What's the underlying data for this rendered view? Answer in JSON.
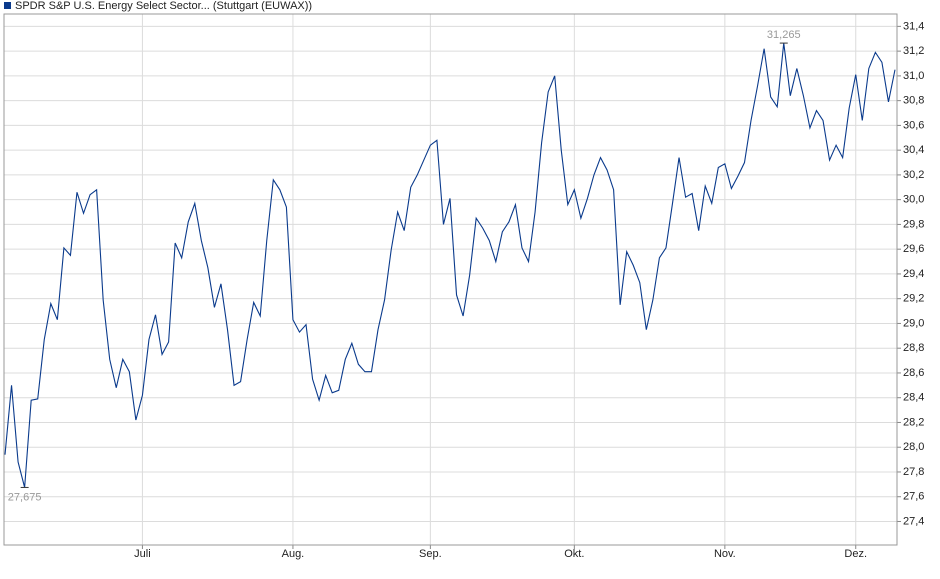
{
  "chart_data": {
    "type": "line",
    "categories": [
      null,
      null,
      null,
      null,
      null,
      null,
      null,
      null,
      null,
      null,
      null,
      null,
      null,
      null,
      null,
      null,
      null,
      null,
      null,
      null,
      null,
      "Juli",
      null,
      null,
      null,
      null,
      null,
      null,
      null,
      null,
      null,
      null,
      null,
      null,
      null,
      null,
      null,
      null,
      null,
      null,
      null,
      null,
      null,
      null,
      "Aug.",
      null,
      null,
      null,
      null,
      null,
      null,
      null,
      null,
      null,
      null,
      null,
      null,
      null,
      null,
      null,
      null,
      null,
      null,
      null,
      null,
      "Sep.",
      null,
      null,
      null,
      null,
      null,
      null,
      null,
      null,
      null,
      null,
      null,
      null,
      null,
      null,
      null,
      null,
      null,
      null,
      null,
      null,
      null,
      "Okt.",
      null,
      null,
      null,
      null,
      null,
      null,
      null,
      null,
      null,
      null,
      null,
      null,
      null,
      null,
      null,
      null,
      null,
      null,
      null,
      null,
      null,
      null,
      "Nov.",
      null,
      null,
      null,
      null,
      null,
      null,
      null,
      null,
      null,
      null,
      null,
      null,
      null,
      null,
      null,
      null,
      null,
      null,
      null,
      "Dez.",
      null,
      null,
      null,
      null,
      null,
      null
    ],
    "series": [
      {
        "name": "SPDR S&P U.S. Energy Select Sector... (Stuttgart (EUWAX))",
        "color": "#0a3a8c",
        "values": [
          27.94,
          28.5,
          27.88,
          27.675,
          28.38,
          28.39,
          28.87,
          29.16,
          29.03,
          29.61,
          29.55,
          30.06,
          29.89,
          30.04,
          30.08,
          29.19,
          28.71,
          28.48,
          28.71,
          28.61,
          28.22,
          28.42,
          28.87,
          29.07,
          28.75,
          28.85,
          29.65,
          29.53,
          29.82,
          29.97,
          29.67,
          29.45,
          29.13,
          29.32,
          28.95,
          28.5,
          28.53,
          28.87,
          29.17,
          29.06,
          29.67,
          30.16,
          30.08,
          29.94,
          29.03,
          28.93,
          28.99,
          28.55,
          28.38,
          28.58,
          28.44,
          28.46,
          28.71,
          28.84,
          28.67,
          28.61,
          28.61,
          28.95,
          29.19,
          29.59,
          29.9,
          29.75,
          30.1,
          30.2,
          30.32,
          30.44,
          30.48,
          29.8,
          30.01,
          29.23,
          29.06,
          29.39,
          29.85,
          29.77,
          29.67,
          29.5,
          29.74,
          29.82,
          29.96,
          29.61,
          29.5,
          29.9,
          30.46,
          30.87,
          31.0,
          30.4,
          29.96,
          30.08,
          29.85,
          30.01,
          30.2,
          30.34,
          30.24,
          30.08,
          29.15,
          29.58,
          29.47,
          29.33,
          28.95,
          29.19,
          29.53,
          29.61,
          29.97,
          30.34,
          30.02,
          30.05,
          29.75,
          30.11,
          29.97,
          30.26,
          30.29,
          30.09,
          30.19,
          30.3,
          30.64,
          30.92,
          31.22,
          30.83,
          30.75,
          31.265,
          30.84,
          31.06,
          30.84,
          30.58,
          30.72,
          30.64,
          30.32,
          30.44,
          30.34,
          30.74,
          31.01,
          30.64,
          31.06,
          31.19,
          31.11,
          30.79,
          31.05
        ],
        "value_labels": [
          null,
          null,
          null,
          "27,675",
          null,
          null,
          null,
          null,
          null,
          null,
          null,
          null,
          null,
          null,
          null,
          null,
          null,
          null,
          null,
          null,
          null,
          null,
          null,
          null,
          null,
          null,
          null,
          null,
          null,
          null,
          null,
          null,
          null,
          null,
          null,
          null,
          null,
          null,
          null,
          null,
          null,
          null,
          null,
          null,
          null,
          null,
          null,
          null,
          null,
          null,
          null,
          null,
          null,
          null,
          null,
          null,
          null,
          null,
          null,
          null,
          null,
          null,
          null,
          null,
          null,
          null,
          null,
          null,
          null,
          null,
          null,
          null,
          null,
          null,
          null,
          null,
          null,
          null,
          null,
          null,
          null,
          null,
          null,
          null,
          null,
          null,
          null,
          null,
          null,
          null,
          null,
          null,
          null,
          null,
          null,
          null,
          null,
          null,
          null,
          null,
          null,
          null,
          null,
          null,
          null,
          null,
          null,
          null,
          null,
          null,
          null,
          null,
          null,
          null,
          null,
          null,
          null,
          null,
          null,
          "31,265",
          null,
          null,
          null,
          null,
          null,
          null,
          null,
          null,
          null,
          null,
          null,
          null,
          null,
          null,
          null,
          null,
          null
        ]
      }
    ],
    "ylim": [
      27.21,
      31.5
    ],
    "yticks": [
      {
        "value": 27.4,
        "label": "27,4"
      },
      {
        "value": 27.6,
        "label": "27,6"
      },
      {
        "value": 27.8,
        "label": "27,8"
      },
      {
        "value": 28.0,
        "label": "28,0"
      },
      {
        "value": 28.2,
        "label": "28,2"
      },
      {
        "value": 28.4,
        "label": "28,4"
      },
      {
        "value": 28.6,
        "label": "28,6"
      },
      {
        "value": 28.8,
        "label": "28,8"
      },
      {
        "value": 29.0,
        "label": "29,0"
      },
      {
        "value": 29.2,
        "label": "29,2"
      },
      {
        "value": 29.4,
        "label": "29,4"
      },
      {
        "value": 29.6,
        "label": "29,6"
      },
      {
        "value": 29.8,
        "label": "29,8"
      },
      {
        "value": 30.0,
        "label": "30,0"
      },
      {
        "value": 30.2,
        "label": "30,2"
      },
      {
        "value": 30.4,
        "label": "30,4"
      },
      {
        "value": 30.6,
        "label": "30,6"
      },
      {
        "value": 30.8,
        "label": "30,8"
      },
      {
        "value": 31.0,
        "label": "31,0"
      },
      {
        "value": 31.2,
        "label": "31,2"
      },
      {
        "value": 31.4,
        "label": "31,4"
      }
    ],
    "grid": true
  }
}
